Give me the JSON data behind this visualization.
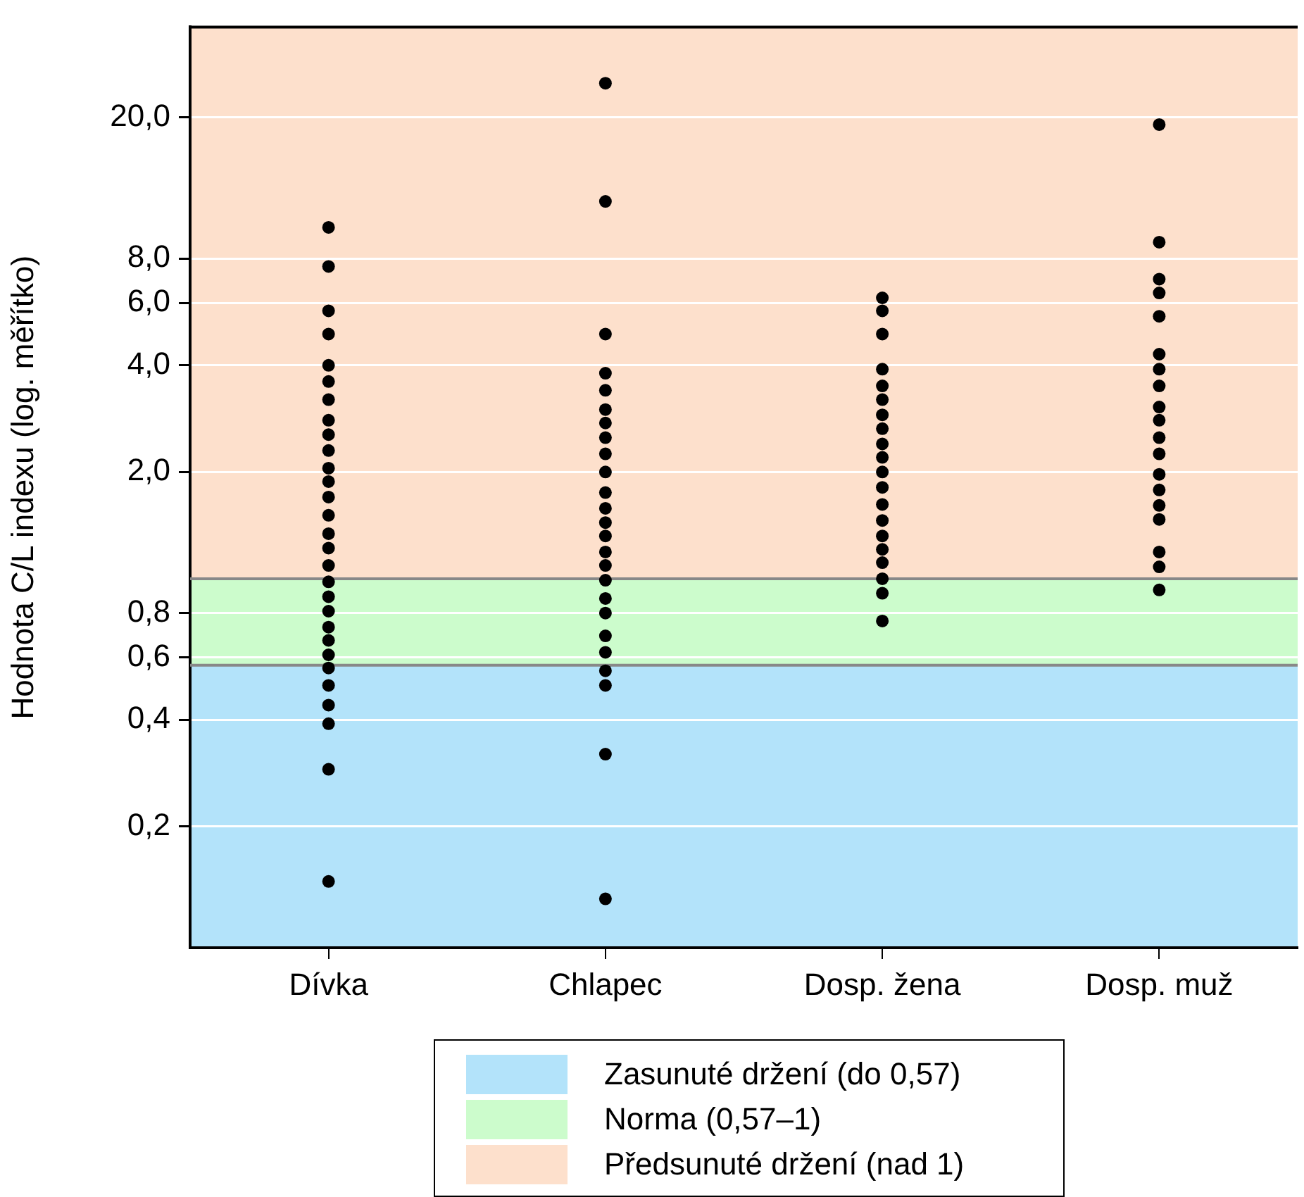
{
  "chart_data": {
    "type": "scatter",
    "ylabel": "Hodnota C/L indexu (log. měřítko)",
    "log": "y",
    "grid": "y",
    "legend": "bottom",
    "marker": "circle",
    "categories": [
      "Dívka",
      "Chlapec",
      "Dosp. žena",
      "Dosp. muž"
    ],
    "ylim": [
      0.091,
      36
    ],
    "yticks": [
      {
        "value": 0.2,
        "label": "0,2"
      },
      {
        "value": 0.4,
        "label": "0,4"
      },
      {
        "value": 0.6,
        "label": "0,6"
      },
      {
        "value": 0.8,
        "label": "0,8"
      },
      {
        "value": 2,
        "label": "2,0"
      },
      {
        "value": 4,
        "label": "4,0"
      },
      {
        "value": 6,
        "label": "6,0"
      },
      {
        "value": 8,
        "label": "8,0"
      },
      {
        "value": 20,
        "label": "20,0"
      }
    ],
    "bands": [
      {
        "axis": "y",
        "from": 0.091,
        "to": 0.57,
        "label": "Zasunuté držení (do 0,57)",
        "color": "#b3e3fa"
      },
      {
        "axis": "y",
        "from": 0.57,
        "to": 1,
        "label": "Norma (0,57–1)",
        "color": "#ccfccc"
      },
      {
        "axis": "y",
        "from": 1,
        "to": 36,
        "label": "Předsunuté držení (nad 1)",
        "color": "#fde0cc"
      }
    ],
    "ref_lines": [
      {
        "axis": "y",
        "value": 0.57,
        "color": "#888888"
      },
      {
        "axis": "y",
        "value": 1,
        "color": "#888888"
      }
    ],
    "series": [
      {
        "color": "#000000",
        "x": [
          "Dívka",
          "Dívka",
          "Dívka",
          "Dívka",
          "Dívka",
          "Dívka",
          "Dívka",
          "Dívka",
          "Dívka",
          "Dívka",
          "Dívka",
          "Dívka",
          "Dívka",
          "Dívka",
          "Dívka",
          "Dívka",
          "Dívka",
          "Dívka",
          "Dívka",
          "Dívka",
          "Dívka",
          "Dívka",
          "Dívka",
          "Dívka",
          "Dívka",
          "Dívka",
          "Dívka",
          "Dívka",
          "Dívka"
        ],
        "values": [
          9.8,
          7.6,
          5.7,
          4.9,
          4.0,
          3.6,
          3.2,
          2.8,
          2.55,
          2.3,
          2.05,
          1.88,
          1.7,
          1.51,
          1.34,
          1.22,
          1.09,
          0.98,
          0.89,
          0.81,
          0.73,
          0.67,
          0.61,
          0.56,
          0.5,
          0.44,
          0.39,
          0.29,
          0.14
        ]
      },
      {
        "color": "#000000",
        "x": [
          "Chlapec",
          "Chlapec",
          "Chlapec",
          "Chlapec",
          "Chlapec",
          "Chlapec",
          "Chlapec",
          "Chlapec",
          "Chlapec",
          "Chlapec",
          "Chlapec",
          "Chlapec",
          "Chlapec",
          "Chlapec",
          "Chlapec",
          "Chlapec",
          "Chlapec",
          "Chlapec",
          "Chlapec",
          "Chlapec",
          "Chlapec",
          "Chlapec",
          "Chlapec",
          "Chlapec",
          "Chlapec"
        ],
        "values": [
          25,
          11.6,
          4.9,
          3.8,
          3.4,
          3.0,
          2.75,
          2.5,
          2.25,
          2.0,
          1.75,
          1.58,
          1.44,
          1.32,
          1.19,
          1.09,
          0.99,
          0.88,
          0.8,
          0.69,
          0.62,
          0.55,
          0.5,
          0.32,
          0.125
        ]
      },
      {
        "color": "#000000",
        "x": [
          "Dosp. žena",
          "Dosp. žena",
          "Dosp. žena",
          "Dosp. žena",
          "Dosp. žena",
          "Dosp. žena",
          "Dosp. žena",
          "Dosp. žena",
          "Dosp. žena",
          "Dosp. žena",
          "Dosp. žena",
          "Dosp. žena",
          "Dosp. žena",
          "Dosp. žena",
          "Dosp. žena",
          "Dosp. žena",
          "Dosp. žena",
          "Dosp. žena",
          "Dosp. žena",
          "Dosp. žena"
        ],
        "values": [
          6.2,
          5.7,
          4.9,
          3.9,
          3.5,
          3.2,
          2.9,
          2.65,
          2.4,
          2.2,
          2.0,
          1.81,
          1.62,
          1.46,
          1.32,
          1.21,
          1.11,
          1.0,
          0.91,
          0.76
        ]
      },
      {
        "color": "#000000",
        "x": [
          "Dosp. muž",
          "Dosp. muž",
          "Dosp. muž",
          "Dosp. muž",
          "Dosp. muž",
          "Dosp. muž",
          "Dosp. muž",
          "Dosp. muž",
          "Dosp. muž",
          "Dosp. muž",
          "Dosp. muž",
          "Dosp. muž",
          "Dosp. muž",
          "Dosp. muž",
          "Dosp. muž",
          "Dosp. muž",
          "Dosp. muž",
          "Dosp. muž",
          "Dosp. muž"
        ],
        "values": [
          19.1,
          8.9,
          7.0,
          6.4,
          5.5,
          4.3,
          3.9,
          3.5,
          3.05,
          2.8,
          2.5,
          2.25,
          1.97,
          1.78,
          1.61,
          1.47,
          1.19,
          1.08,
          0.93
        ]
      }
    ]
  }
}
